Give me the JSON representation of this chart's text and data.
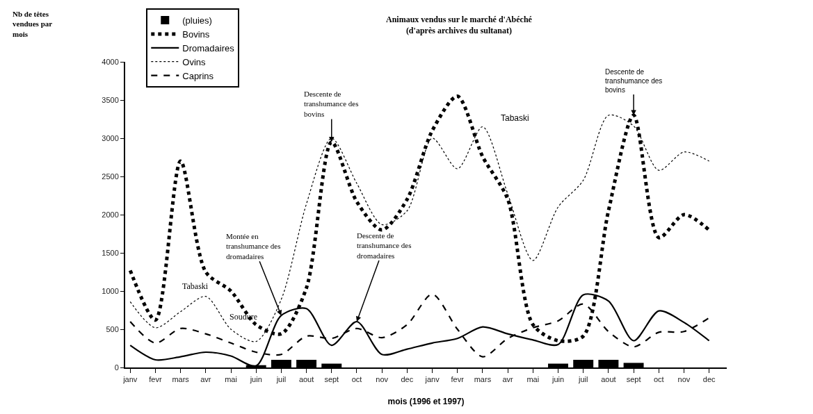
{
  "chart_data": {
    "type": "line",
    "title": "Animaux vendus sur le marché d'Abéché",
    "subtitle": "(d'après archives du sultanat)",
    "xlabel": "mois (1996 et 1997)",
    "categories": [
      "janv",
      "fevr",
      "mars",
      "avr",
      "mai",
      "juin",
      "juil",
      "aout",
      "sept",
      "oct",
      "nov",
      "dec",
      "janv",
      "fevr",
      "mars",
      "avr",
      "mai",
      "juin",
      "juil",
      "aout",
      "sept",
      "oct",
      "nov",
      "dec"
    ],
    "ylim": [
      0,
      4000
    ],
    "yticks": [
      0,
      500,
      1000,
      1500,
      2000,
      2500,
      3000,
      3500,
      4000
    ],
    "legend": "top left",
    "series": [
      {
        "name": "(pluies)",
        "type": "bar",
        "color": "#000000",
        "values": [
          null,
          null,
          null,
          null,
          null,
          30,
          100,
          100,
          50,
          null,
          null,
          null,
          null,
          null,
          null,
          null,
          null,
          50,
          100,
          100,
          60,
          null,
          null,
          null
        ]
      },
      {
        "name": "Bovins",
        "color": "#000000",
        "line_style": "dotted",
        "values": [
          1270,
          620,
          2700,
          1250,
          1000,
          560,
          440,
          1040,
          2950,
          2170,
          1800,
          2200,
          3100,
          3550,
          2760,
          2200,
          560,
          350,
          410,
          2050,
          3300,
          1700,
          2000,
          1800
        ]
      },
      {
        "name": "Dromadaires",
        "color": "#000000",
        "line_style": "solid",
        "values": [
          290,
          100,
          140,
          200,
          150,
          20,
          680,
          770,
          290,
          600,
          170,
          240,
          320,
          380,
          530,
          440,
          360,
          300,
          950,
          870,
          350,
          740,
          590,
          350
        ]
      },
      {
        "name": "Ovins",
        "color": "#000000",
        "line_style": "dotted",
        "values": [
          860,
          520,
          730,
          930,
          500,
          340,
          890,
          2140,
          3000,
          2410,
          1870,
          2050,
          3000,
          2600,
          3150,
          2270,
          1400,
          2100,
          2450,
          3300,
          3160,
          2580,
          2820,
          2700
        ]
      },
      {
        "name": "Caprins",
        "color": "#000000",
        "line_style": "dashed",
        "values": [
          600,
          320,
          510,
          440,
          320,
          200,
          170,
          410,
          380,
          510,
          390,
          560,
          960,
          500,
          140,
          380,
          520,
          610,
          830,
          470,
          270,
          460,
          470,
          650
        ]
      }
    ],
    "annotations": [
      {
        "text": "Descente de transhumance des bovins",
        "x": "sept",
        "y": 2950
      },
      {
        "text": "Descente de transhumance des bovins",
        "y": 3300
      },
      {
        "text": "Montée en transhumance des dromadaires",
        "x": "juil",
        "y": 680
      },
      {
        "text": "Descente de transhumance des dromadaires",
        "x": "oct",
        "y": 600
      },
      "Tabaski",
      "Tabaski",
      "Soudure",
      "Nb de têtes vendues par mois"
    ]
  }
}
